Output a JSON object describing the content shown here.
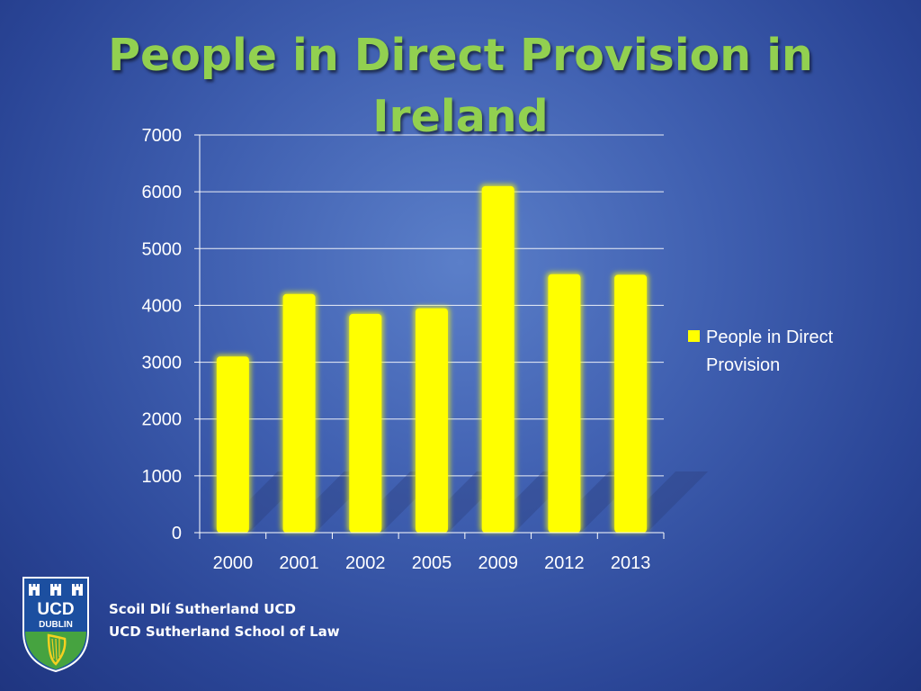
{
  "slide": {
    "title": "People in Direct Provision in Ireland",
    "footer_line1": "Scoil Dlí Sutherland UCD",
    "footer_line2": "UCD Sutherland School of Law",
    "logo_text_1": "UCD",
    "logo_text_2": "DUBLIN"
  },
  "colors": {
    "title": "#92d050",
    "bar": "#ffff00",
    "text": "#ffffff",
    "gridline": "#ffffff"
  },
  "chart_data": {
    "type": "bar",
    "categories": [
      "2000",
      "2001",
      "2002",
      "2005",
      "2009",
      "2012",
      "2013"
    ],
    "series": [
      {
        "name": "People in Direct Provision",
        "values": [
          3100,
          4200,
          3850,
          3950,
          6100,
          4550,
          4540
        ]
      }
    ],
    "ylim": [
      0,
      7000
    ],
    "yticks": [
      0,
      1000,
      2000,
      3000,
      4000,
      5000,
      6000,
      7000
    ],
    "grid": true,
    "legend_position": "right"
  }
}
